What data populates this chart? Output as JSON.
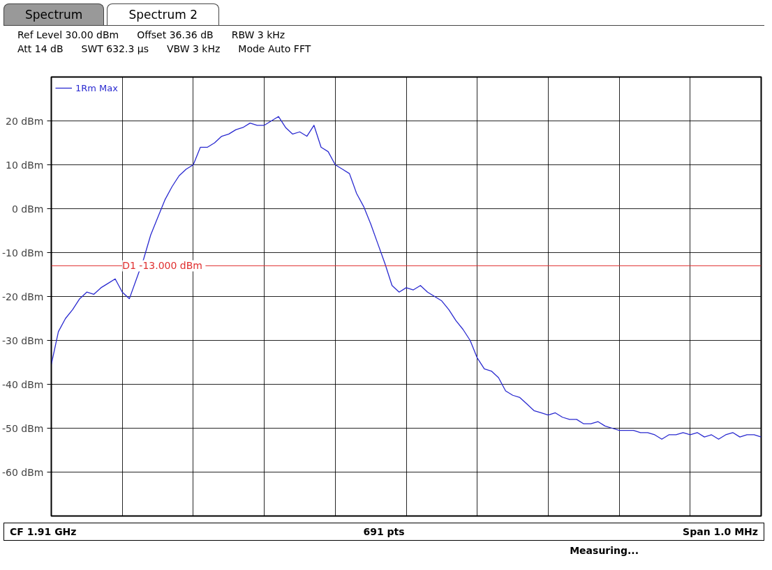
{
  "chart_data": {
    "type": "line",
    "categories": [
      null,
      null,
      null,
      null,
      null,
      null,
      null,
      null,
      null,
      null,
      null,
      null,
      null,
      null,
      null,
      null,
      null,
      null,
      null,
      null,
      null,
      null,
      null,
      null,
      null,
      null,
      null,
      null,
      null,
      null,
      null,
      null,
      null,
      null,
      null,
      null,
      null,
      null,
      null,
      null,
      null,
      null,
      null,
      null,
      null,
      null,
      null,
      null,
      null,
      null,
      null,
      null,
      null,
      null,
      null,
      null,
      null,
      null,
      null,
      null,
      null,
      null,
      null,
      null,
      null,
      null,
      null,
      null,
      null,
      null,
      null,
      null,
      null,
      null,
      null,
      null,
      null,
      null,
      null,
      null,
      null,
      null,
      null,
      null,
      null,
      null,
      null,
      null,
      null,
      null,
      null,
      null,
      null,
      null,
      null,
      null,
      null,
      null,
      null,
      null,
      null
    ],
    "series": [
      {
        "name": "1Rm Max",
        "color": "#2a2ad0",
        "values": [
          -35.5,
          -28,
          -25,
          -23,
          -20.5,
          -19,
          -19.5,
          -18,
          -17,
          -16,
          -19,
          -20.5,
          -16,
          -11.5,
          -6,
          -2,
          2,
          5,
          7.5,
          9,
          10,
          14,
          14,
          15,
          16.5,
          17,
          18,
          18.5,
          19.5,
          19,
          19,
          20,
          21,
          18.5,
          17,
          17.5,
          16.5,
          19,
          14,
          13,
          10,
          9,
          8,
          3.5,
          0.5,
          -3.5,
          -8,
          -12.5,
          -17.5,
          -19,
          -18,
          -18.5,
          -17.5,
          -19,
          -20,
          -21,
          -23,
          -25.5,
          -27.5,
          -30,
          -34,
          -36.5,
          -37,
          -38.5,
          -41.5,
          -42.5,
          -43,
          -44.5,
          -46,
          -46.5,
          -47,
          -46.5,
          -47.5,
          -48,
          -48,
          -49,
          -49,
          -48.5,
          -49.5,
          -50,
          -50.5,
          -50.5,
          -50.5,
          -51,
          -51,
          -51.5,
          -52.5,
          -51.5,
          -51.5,
          -51,
          -51.5,
          -51,
          -52,
          -51.5,
          -52.5,
          -51.5,
          -51,
          -52,
          -51.5,
          -51.5,
          -52
        ]
      }
    ],
    "ylim": [
      -70,
      30
    ],
    "yticks": [
      {
        "value": -60,
        "label": "-60 dBm"
      },
      {
        "value": -50,
        "label": "-50 dBm"
      },
      {
        "value": -40,
        "label": "-40 dBm"
      },
      {
        "value": -30,
        "label": "-30 dBm"
      },
      {
        "value": -20,
        "label": "-20 dBm"
      },
      {
        "value": -10,
        "label": "-10 dBm"
      },
      {
        "value": 0,
        "label": "0 dBm"
      },
      {
        "value": 10,
        "label": "10 dBm"
      },
      {
        "value": 20,
        "label": "20 dBm"
      }
    ],
    "grid": true,
    "legend": "top left",
    "line_style": "solid",
    "ref_lines": [
      {
        "axis": "y",
        "value": -13,
        "label": "D1  -13.000 dBm",
        "color": "#e03030"
      }
    ],
    "annotations": [
      "Spectrum",
      "Spectrum 2",
      "Ref Level 30.00 dBm",
      "Offset 36.36 dB",
      "RBW 3 kHz",
      "Att 14 dB",
      "SWT 632.3 µs",
      "VBW 3 kHz",
      "Mode Auto FFT",
      "CF 1.91 GHz",
      "691 pts",
      "Span 1.0 MHz",
      "Measuring..."
    ]
  }
}
